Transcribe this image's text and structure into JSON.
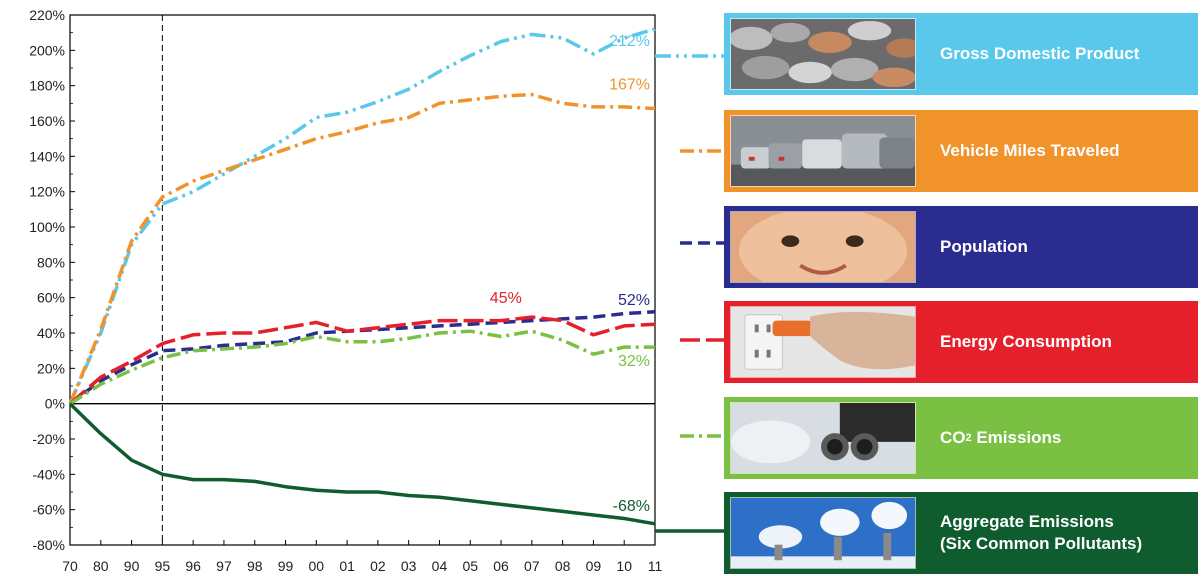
{
  "chart_data": {
    "type": "line",
    "title": "",
    "xlabel": "",
    "ylabel": "",
    "x": [
      "70",
      "80",
      "90",
      "95",
      "96",
      "97",
      "98",
      "99",
      "00",
      "01",
      "02",
      "03",
      "04",
      "05",
      "06",
      "07",
      "08",
      "09",
      "10",
      "11"
    ],
    "y_ticks": [
      "220%",
      "200%",
      "180%",
      "160%",
      "140%",
      "120%",
      "100%",
      "80%",
      "60%",
      "40%",
      "20%",
      "0%",
      "-20%",
      "-40%",
      "-60%",
      "-80%"
    ],
    "ylim": [
      -80,
      220
    ],
    "reference_line_x": "95",
    "grid": false,
    "series": [
      {
        "name": "Gross Domestic Product",
        "color": "#5ac8ea",
        "dash": "dash-dot-dot",
        "values": [
          0,
          40,
          90,
          113,
          120,
          130,
          140,
          150,
          162,
          165,
          171,
          178,
          188,
          197,
          205,
          209,
          207,
          198,
          207,
          212
        ],
        "end_label": "212%"
      },
      {
        "name": "Vehicle Miles Traveled",
        "color": "#f0932b",
        "dash": "dash-dot",
        "values": [
          0,
          42,
          92,
          117,
          126,
          132,
          138,
          144,
          150,
          154,
          159,
          162,
          170,
          172,
          174,
          175,
          170,
          168,
          168,
          167
        ],
        "end_label": "167%"
      },
      {
        "name": "Population",
        "color": "#2a2c8f",
        "dash": "dashed",
        "values": [
          0,
          13,
          22,
          30,
          31,
          33,
          34,
          35,
          40,
          41,
          42,
          43,
          44,
          45,
          46,
          47,
          48,
          49,
          51,
          52
        ],
        "end_label": "52%"
      },
      {
        "name": "Energy Consumption",
        "color": "#e5202a",
        "dash": "long-dash",
        "values": [
          0,
          15,
          24,
          34,
          39,
          40,
          40,
          43,
          46,
          41,
          43,
          45,
          47,
          47,
          47,
          49,
          47,
          39,
          44,
          45
        ],
        "end_label": "45%"
      },
      {
        "name": "CO2 Emissions",
        "color": "#7ac143",
        "dash": "dash-dot",
        "values": [
          0,
          11,
          19,
          26,
          30,
          31,
          32,
          34,
          38,
          35,
          35,
          37,
          40,
          41,
          38,
          41,
          36,
          28,
          32,
          32
        ],
        "end_label": "32%"
      },
      {
        "name": "Aggregate Emissions (Six Common Pollutants)",
        "color": "#0f5c2f",
        "dash": "solid",
        "values": [
          0,
          -17,
          -32,
          -40,
          -43,
          -43,
          -44,
          -47,
          -49,
          -50,
          -50,
          -52,
          -53,
          -55,
          -57,
          -59,
          -61,
          -63,
          -65,
          -68
        ],
        "end_label": "-68%"
      }
    ]
  },
  "legend": {
    "gdp": {
      "label": "Gross Domestic Product",
      "color": "#5ac8ea",
      "photo_icon": "coins-photo"
    },
    "vmt": {
      "label": "Vehicle Miles Traveled",
      "color": "#f0932b",
      "photo_icon": "traffic-photo"
    },
    "population": {
      "label": "Population",
      "color": "#2a2c8f",
      "photo_icon": "baby-face-photo"
    },
    "energy": {
      "label": "Energy Consumption",
      "color": "#e5202a",
      "photo_icon": "power-plug-photo"
    },
    "co2": {
      "label_prefix": "CO",
      "label_sub": "2",
      "label_suffix": " Emissions",
      "color": "#7ac143",
      "photo_icon": "exhaust-pipes-photo"
    },
    "aggregate": {
      "label_line1": "Aggregate Emissions",
      "label_line2": "(Six Common Pollutants)",
      "color": "#0f5c2f",
      "photo_icon": "smokestacks-photo"
    }
  }
}
